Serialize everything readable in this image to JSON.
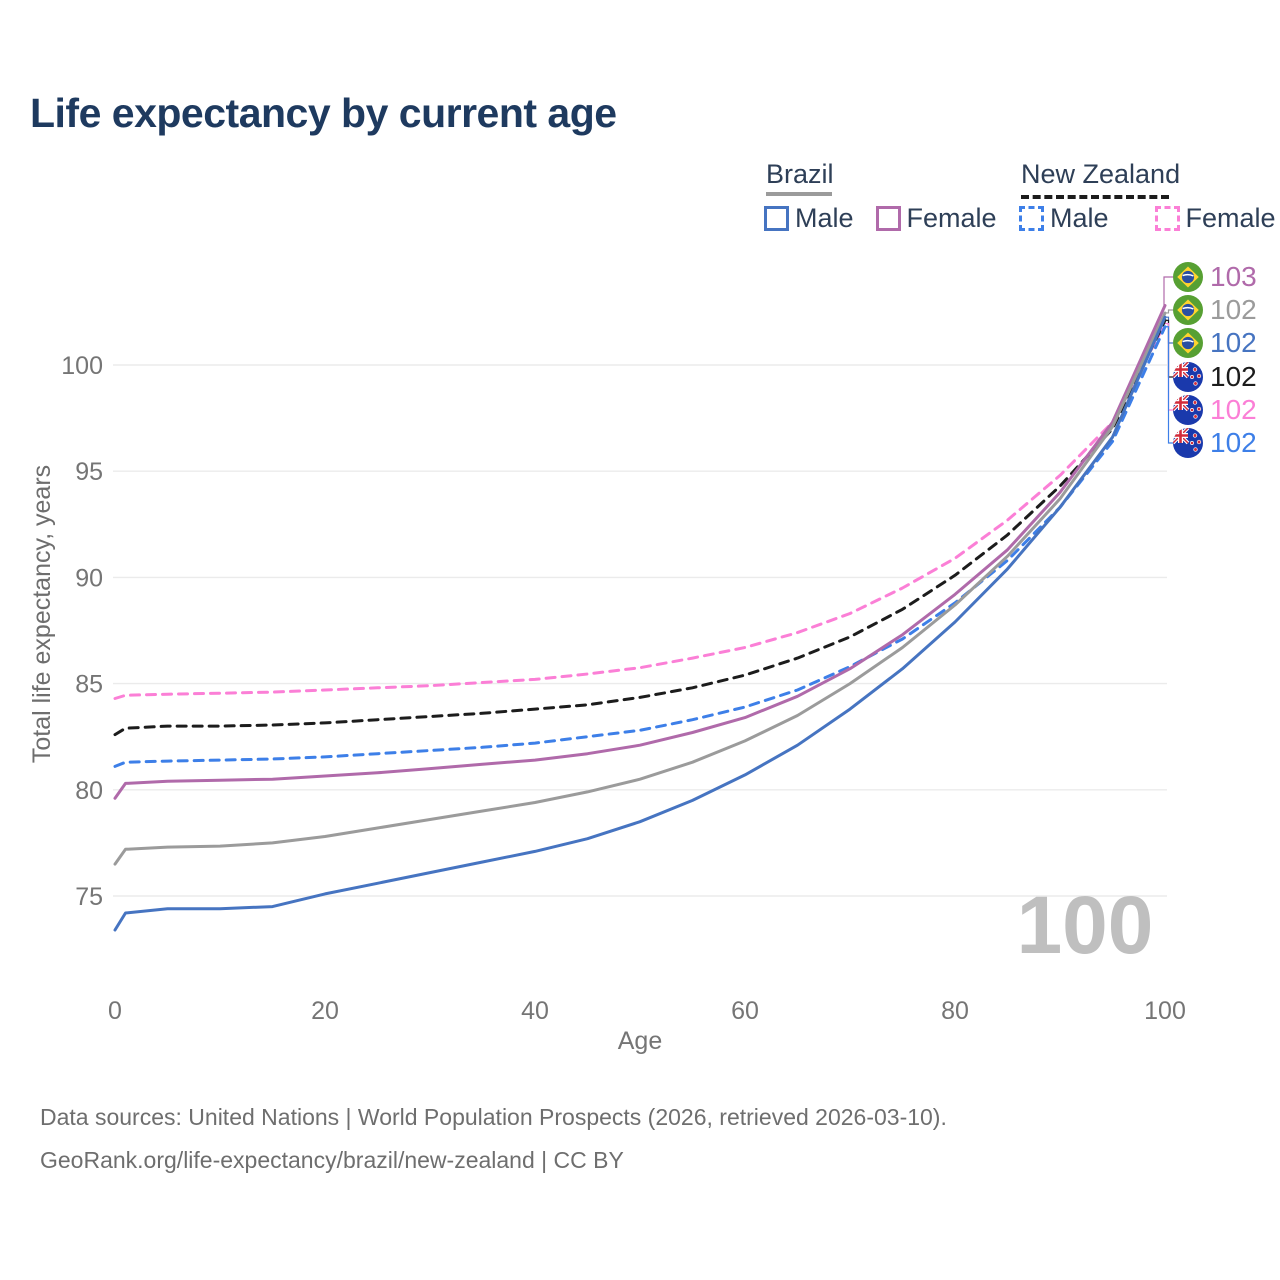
{
  "title": "Life expectancy by current age",
  "legend": {
    "groups": [
      {
        "label": "Brazil",
        "line_style": "solid",
        "line_color": "#9b9b9b",
        "items": [
          {
            "label": "Male",
            "color": "#4674c1",
            "dashed": false
          },
          {
            "label": "Female",
            "color": "#b06aaa",
            "dashed": false
          }
        ]
      },
      {
        "label": "New Zealand",
        "line_style": "dashed",
        "line_color": "#1c1c1c",
        "items": [
          {
            "label": "Male",
            "color": "#3d7fe8",
            "dashed": true
          },
          {
            "label": "Female",
            "color": "#fb7fd6",
            "dashed": true
          }
        ]
      }
    ]
  },
  "chart_data": {
    "type": "line",
    "title": "Life expectancy by current age",
    "xlabel": "Age",
    "ylabel": "Total life expectancy, years",
    "xlim": [
      0,
      100
    ],
    "ylim": [
      73,
      103.5
    ],
    "x_ticks": [
      0,
      20,
      40,
      60,
      80,
      100
    ],
    "y_ticks": [
      75,
      80,
      85,
      90,
      95,
      100
    ],
    "grid": "horizontal",
    "gridline_color": "#ebebeb",
    "axis_text_color": "#757575",
    "watermark": "100",
    "watermark_color": "#bfbfbf",
    "ages": [
      0,
      1,
      5,
      10,
      15,
      20,
      25,
      30,
      35,
      40,
      45,
      50,
      55,
      60,
      65,
      70,
      75,
      80,
      85,
      90,
      95,
      100
    ],
    "series": [
      {
        "name": "New Zealand Female",
        "country": "New Zealand",
        "sex": "Female",
        "color": "#fb7fd6",
        "dashed": true,
        "values": [
          84.3,
          84.45,
          84.5,
          84.55,
          84.6,
          84.7,
          84.8,
          84.9,
          85.05,
          85.2,
          85.45,
          85.75,
          86.2,
          86.7,
          87.4,
          88.3,
          89.5,
          90.9,
          92.7,
          94.8,
          97.3,
          101.95
        ]
      },
      {
        "name": "New Zealand Total",
        "country": "New Zealand",
        "sex": "Both",
        "color": "#1c1c1c",
        "dashed": true,
        "values": [
          82.6,
          82.9,
          83.0,
          83.0,
          83.05,
          83.15,
          83.3,
          83.45,
          83.6,
          83.8,
          84.0,
          84.35,
          84.8,
          85.4,
          86.2,
          87.2,
          88.5,
          90.1,
          92.0,
          94.3,
          97.0,
          102.1
        ]
      },
      {
        "name": "New Zealand Male",
        "country": "New Zealand",
        "sex": "Male",
        "color": "#3d7fe8",
        "dashed": true,
        "values": [
          81.1,
          81.3,
          81.35,
          81.4,
          81.45,
          81.55,
          81.7,
          81.85,
          82.0,
          82.2,
          82.5,
          82.8,
          83.3,
          83.9,
          84.7,
          85.8,
          87.1,
          88.8,
          90.8,
          93.3,
          96.4,
          101.8
        ]
      },
      {
        "name": "Brazil Female",
        "country": "Brazil",
        "sex": "Female",
        "color": "#b06aaa",
        "dashed": false,
        "values": [
          79.6,
          80.3,
          80.4,
          80.45,
          80.5,
          80.65,
          80.8,
          81.0,
          81.2,
          81.4,
          81.7,
          82.1,
          82.7,
          83.4,
          84.4,
          85.7,
          87.3,
          89.2,
          91.3,
          94.0,
          97.3,
          102.8
        ]
      },
      {
        "name": "Brazil Total",
        "country": "Brazil",
        "sex": "Both",
        "color": "#9b9b9b",
        "dashed": false,
        "values": [
          76.5,
          77.2,
          77.3,
          77.35,
          77.5,
          77.8,
          78.2,
          78.6,
          79.0,
          79.4,
          79.9,
          80.5,
          81.3,
          82.3,
          83.5,
          85.0,
          86.7,
          88.7,
          91.0,
          93.7,
          97.1,
          102.45
        ]
      },
      {
        "name": "Brazil Male",
        "country": "Brazil",
        "sex": "Male",
        "color": "#4674c1",
        "dashed": false,
        "values": [
          73.4,
          74.2,
          74.4,
          74.4,
          74.5,
          75.1,
          75.6,
          76.1,
          76.6,
          77.1,
          77.7,
          78.5,
          79.5,
          80.7,
          82.1,
          83.8,
          85.7,
          87.9,
          90.4,
          93.3,
          96.6,
          102.25
        ]
      }
    ],
    "end_labels": [
      {
        "value": "103",
        "color": "#b06aaa",
        "flag": "brazil-flag-icon",
        "series": "Brazil Female"
      },
      {
        "value": "102",
        "color": "#9b9b9b",
        "flag": "brazil-flag-icon",
        "series": "Brazil Total"
      },
      {
        "value": "102",
        "color": "#4674c1",
        "flag": "brazil-flag-icon",
        "series": "Brazil Male"
      },
      {
        "value": "102",
        "color": "#1c1c1c",
        "flag": "new-zealand-flag-icon",
        "series": "New Zealand Total"
      },
      {
        "value": "102",
        "color": "#fb7fd6",
        "flag": "new-zealand-flag-icon",
        "series": "New Zealand Female"
      },
      {
        "value": "102",
        "color": "#3d7fe8",
        "flag": "new-zealand-flag-icon",
        "series": "New Zealand Male"
      }
    ]
  },
  "footer": {
    "line1": "Data sources: United Nations | World Population Prospects (2026, retrieved 2026-03-10).",
    "line2": "GeoRank.org/life-expectancy/brazil/new-zealand | CC BY"
  }
}
